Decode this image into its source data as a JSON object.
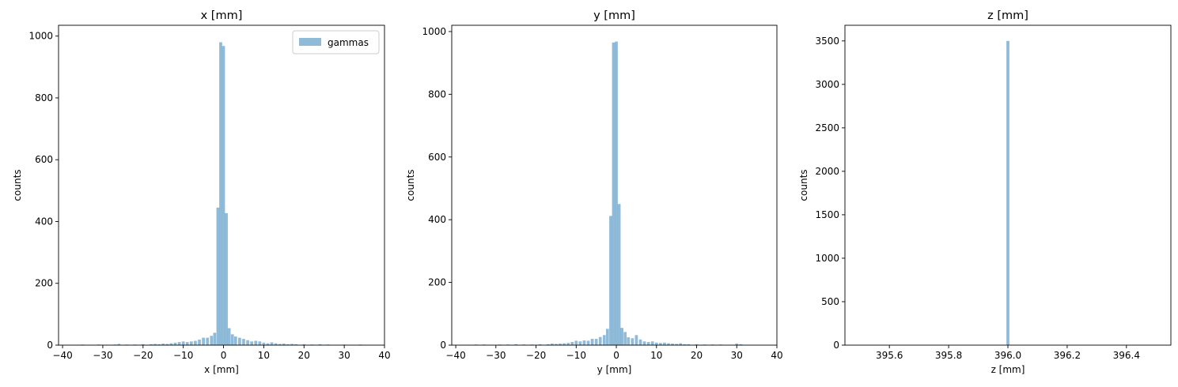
{
  "chart_data": [
    {
      "type": "bar",
      "title": "x [mm]",
      "xlabel": "x [mm]",
      "ylabel": "counts",
      "xlim": [
        -41,
        40
      ],
      "ylim": [
        0,
        1035
      ],
      "xticks": [
        -40,
        -30,
        -20,
        -10,
        0,
        10,
        20,
        30,
        40
      ],
      "yticks": [
        0,
        200,
        400,
        600,
        800,
        1000
      ],
      "legend": {
        "position": "top-right",
        "entries": [
          "gammas"
        ]
      },
      "grid": false,
      "color": "#1f77b4",
      "opacity": 0.5,
      "bin_width": 0.73,
      "series": [
        {
          "name": "gammas",
          "bins": [
            [
              -35,
              2
            ],
            [
              -33,
              1
            ],
            [
              -31,
              2
            ],
            [
              -29,
              1
            ],
            [
              -27,
              2
            ],
            [
              -26,
              4
            ],
            [
              -24,
              2
            ],
            [
              -22,
              2
            ],
            [
              -20,
              3
            ],
            [
              -18,
              3
            ],
            [
              -17,
              4
            ],
            [
              -16,
              3
            ],
            [
              -15,
              5
            ],
            [
              -14,
              4
            ],
            [
              -13,
              6
            ],
            [
              -12,
              8
            ],
            [
              -11,
              10
            ],
            [
              -10,
              12
            ],
            [
              -9,
              10
            ],
            [
              -8,
              12
            ],
            [
              -7,
              14
            ],
            [
              -6,
              18
            ],
            [
              -5,
              24
            ],
            [
              -4,
              24
            ],
            [
              -3,
              30
            ],
            [
              -2.2,
              40
            ],
            [
              -1.4,
              445
            ],
            [
              -0.7,
              980
            ],
            [
              0,
              968
            ],
            [
              0.7,
              427
            ],
            [
              1.4,
              55
            ],
            [
              2.2,
              35
            ],
            [
              3,
              28
            ],
            [
              4,
              24
            ],
            [
              5,
              20
            ],
            [
              6,
              16
            ],
            [
              7,
              12
            ],
            [
              8,
              14
            ],
            [
              9,
              12
            ],
            [
              10,
              8
            ],
            [
              11,
              6
            ],
            [
              12,
              9
            ],
            [
              13,
              6
            ],
            [
              14,
              4
            ],
            [
              15,
              5
            ],
            [
              16,
              3
            ],
            [
              17,
              4
            ],
            [
              18,
              3
            ],
            [
              20,
              3
            ],
            [
              22,
              2
            ],
            [
              24,
              3
            ],
            [
              26,
              2
            ],
            [
              28,
              1
            ],
            [
              30,
              2
            ],
            [
              32,
              1
            ],
            [
              34,
              2
            ]
          ]
        }
      ]
    },
    {
      "type": "bar",
      "title": "y [mm]",
      "xlabel": "y [mm]",
      "ylabel": "counts",
      "xlim": [
        -41,
        40
      ],
      "ylim": [
        0,
        1020
      ],
      "xticks": [
        -40,
        -30,
        -20,
        -10,
        0,
        10,
        20,
        30,
        40
      ],
      "yticks": [
        0,
        200,
        400,
        600,
        800,
        1000
      ],
      "grid": false,
      "color": "#1f77b4",
      "opacity": 0.5,
      "bin_width": 0.73,
      "series": [
        {
          "name": "",
          "bins": [
            [
              -37,
              1
            ],
            [
              -35,
              2
            ],
            [
              -33,
              2
            ],
            [
              -31,
              1
            ],
            [
              -29,
              2
            ],
            [
              -27,
              2
            ],
            [
              -25,
              3
            ],
            [
              -23,
              2
            ],
            [
              -21,
              2
            ],
            [
              -19,
              3
            ],
            [
              -17,
              3
            ],
            [
              -16,
              5
            ],
            [
              -15,
              4
            ],
            [
              -14,
              5
            ],
            [
              -13,
              6
            ],
            [
              -12,
              7
            ],
            [
              -11,
              10
            ],
            [
              -10,
              14
            ],
            [
              -9,
              12
            ],
            [
              -8,
              15
            ],
            [
              -7,
              14
            ],
            [
              -6,
              20
            ],
            [
              -5,
              20
            ],
            [
              -4,
              26
            ],
            [
              -3,
              32
            ],
            [
              -2.2,
              52
            ],
            [
              -1.4,
              412
            ],
            [
              -0.7,
              965
            ],
            [
              0,
              968
            ],
            [
              0.7,
              450
            ],
            [
              1.4,
              55
            ],
            [
              2.2,
              42
            ],
            [
              3,
              25
            ],
            [
              4,
              22
            ],
            [
              5,
              32
            ],
            [
              6,
              18
            ],
            [
              7,
              12
            ],
            [
              8,
              10
            ],
            [
              9,
              12
            ],
            [
              10,
              8
            ],
            [
              11,
              7
            ],
            [
              12,
              8
            ],
            [
              13,
              6
            ],
            [
              14,
              5
            ],
            [
              15,
              4
            ],
            [
              16,
              6
            ],
            [
              17,
              3
            ],
            [
              18,
              3
            ],
            [
              20,
              3
            ],
            [
              22,
              2
            ],
            [
              24,
              2
            ],
            [
              26,
              2
            ],
            [
              28,
              1
            ],
            [
              30,
              5
            ],
            [
              31,
              3
            ],
            [
              33,
              1
            ],
            [
              36,
              1
            ]
          ]
        }
      ]
    },
    {
      "type": "bar",
      "title": "z [mm]",
      "xlabel": "z [mm]",
      "ylabel": "counts",
      "xlim": [
        395.45,
        396.55
      ],
      "ylim": [
        0,
        3680
      ],
      "xticks": [
        395.6,
        395.8,
        396.0,
        396.2,
        396.4
      ],
      "xtick_labels": [
        "395.6",
        "395.8",
        "396.0",
        "396.2",
        "396.4"
      ],
      "yticks": [
        0,
        500,
        1000,
        1500,
        2000,
        2500,
        3000,
        3500
      ],
      "grid": false,
      "color": "#1f77b4",
      "opacity": 0.5,
      "bin_width": 0.01,
      "series": [
        {
          "name": "",
          "bins": [
            [
              396.0,
              3500
            ]
          ]
        }
      ]
    }
  ]
}
